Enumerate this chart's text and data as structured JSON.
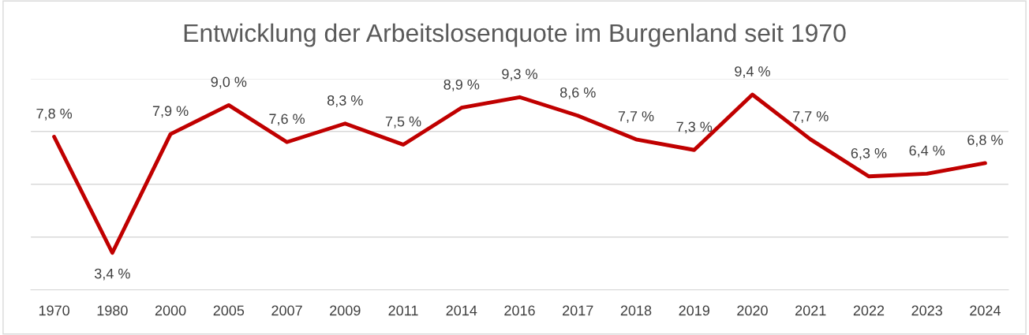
{
  "chart_data": {
    "type": "line",
    "title": "Entwicklung der Arbeitslosenquote im Burgenland seit 1970",
    "categories": [
      "1970",
      "1980",
      "2000",
      "2005",
      "2007",
      "2009",
      "2011",
      "2014",
      "2016",
      "2017",
      "2018",
      "2019",
      "2020",
      "2021",
      "2022",
      "2023",
      "2024"
    ],
    "series": [
      {
        "color": "#c00000",
        "values": [
          7.8,
          3.4,
          7.9,
          9.0,
          7.6,
          8.3,
          7.5,
          8.9,
          9.3,
          8.6,
          7.7,
          7.3,
          9.4,
          7.7,
          6.3,
          6.4,
          6.8
        ],
        "value_labels": [
          "7,8 %",
          "3,4 %",
          "7,9 %",
          "9,0 %",
          "7,6 %",
          "8,3 %",
          "7,5 %",
          "8,9 %",
          "9,3 %",
          "8,6 %",
          "7,7 %",
          "7,3 %",
          "9,4 %",
          "7,7 %",
          "6,3 %",
          "6,4 %",
          "6,8 %"
        ]
      }
    ],
    "ylim": [
      2,
      10
    ],
    "yticks": [
      {
        "value": 2,
        "label": null
      },
      {
        "value": 4,
        "label": null
      },
      {
        "value": 6,
        "label": null
      },
      {
        "value": 8,
        "label": null
      },
      {
        "value": 10,
        "label": null
      }
    ],
    "tick_labels": "x",
    "grid": "y",
    "legend": false,
    "marker": "none",
    "line_style": "solid"
  }
}
